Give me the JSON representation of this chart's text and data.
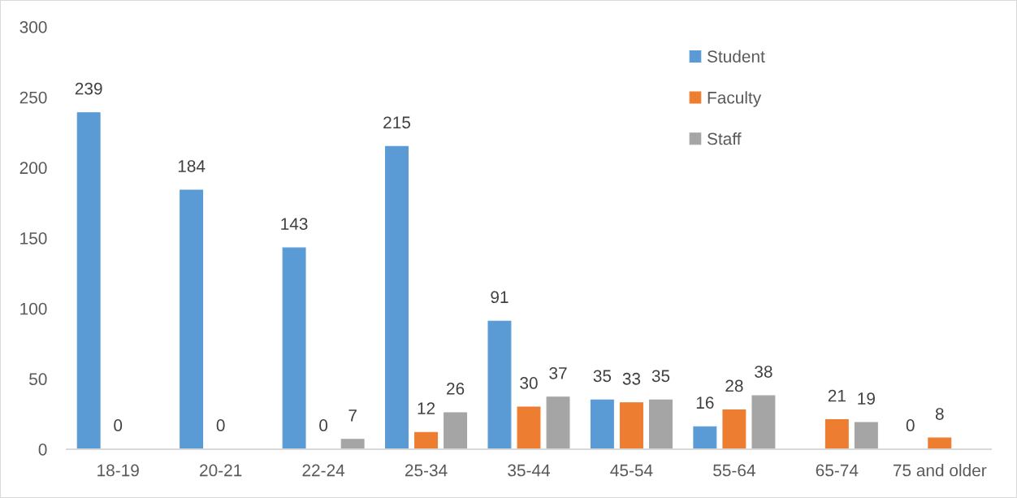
{
  "chart_data": {
    "type": "bar",
    "categories": [
      "18-19",
      "20-21",
      "22-24",
      "25-34",
      "35-44",
      "45-54",
      "55-64",
      "65-74",
      "75 and older"
    ],
    "series": [
      {
        "name": "Student",
        "color": "#5b9bd5",
        "values": [
          239,
          184,
          143,
          215,
          91,
          35,
          16,
          null,
          0
        ]
      },
      {
        "name": "Faculty",
        "color": "#ed7d31",
        "values": [
          0,
          0,
          0,
          12,
          30,
          33,
          28,
          21,
          8
        ]
      },
      {
        "name": "Staff",
        "color": "#a5a5a5",
        "values": [
          null,
          null,
          7,
          26,
          37,
          35,
          38,
          19,
          null
        ]
      }
    ],
    "ylim": [
      0,
      300
    ],
    "yticks": [
      0,
      50,
      100,
      150,
      200,
      250,
      300
    ],
    "data_labels": true,
    "legend": "top right",
    "grid": false
  }
}
